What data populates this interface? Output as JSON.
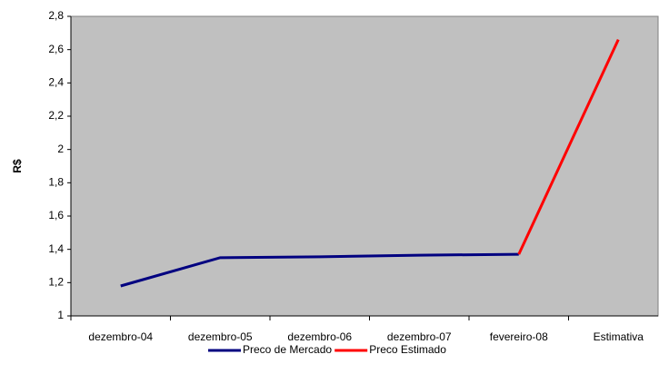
{
  "chart_data": {
    "type": "line",
    "y_label": "R$",
    "categories": [
      "dezembro-04",
      "dezembro-05",
      "dezembro-06",
      "dezembro-07",
      "fevereiro-08",
      "Estimativa"
    ],
    "series": [
      {
        "name": "Preco de Mercado",
        "color": "#000080",
        "values": [
          1.18,
          1.35,
          1.355,
          1.365,
          1.37,
          null
        ]
      },
      {
        "name": "Preco Estimado",
        "color": "#ff0000",
        "values": [
          null,
          null,
          null,
          null,
          1.37,
          2.66
        ]
      }
    ],
    "ylim": [
      1,
      2.8
    ],
    "yticks": [
      1,
      {
        "value": 1.2,
        "label": "1,2"
      },
      {
        "value": 1.4,
        "label": "1,4"
      },
      {
        "value": 1.6,
        "label": "1,6"
      },
      {
        "value": 1.8,
        "label": "1,8"
      },
      2,
      {
        "value": 2.2,
        "label": "2,2"
      },
      {
        "value": 2.4,
        "label": "2,4"
      },
      {
        "value": 2.6,
        "label": "2,6"
      },
      {
        "value": 2.8,
        "label": "2,8"
      }
    ],
    "grid": false,
    "legend": "bottom"
  }
}
